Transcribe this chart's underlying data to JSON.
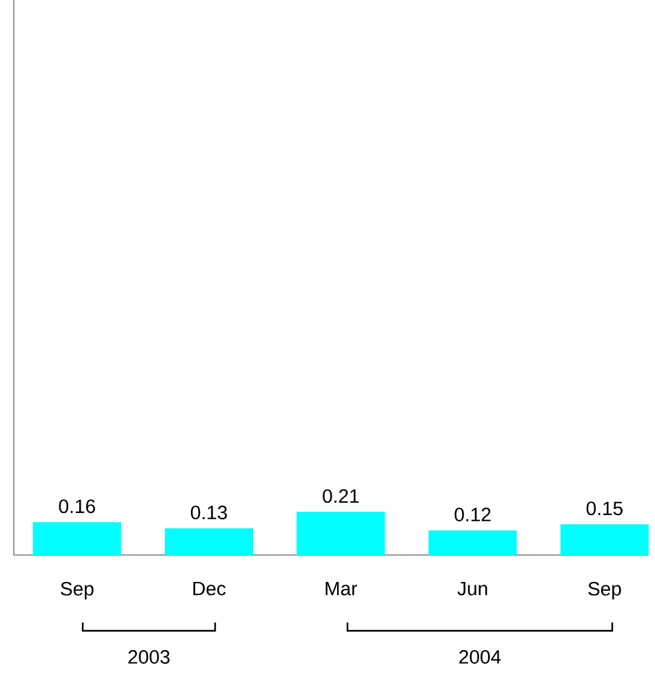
{
  "chart_data": {
    "type": "bar",
    "categories": [
      "Sep",
      "Dec",
      "Mar",
      "Jun",
      "Sep"
    ],
    "values": [
      0.16,
      0.13,
      0.21,
      0.12,
      0.15
    ],
    "color": "#00ffff",
    "data_labels": true,
    "ylim": [
      0,
      2.7
    ],
    "annotations": [
      "2003",
      "2004"
    ]
  }
}
